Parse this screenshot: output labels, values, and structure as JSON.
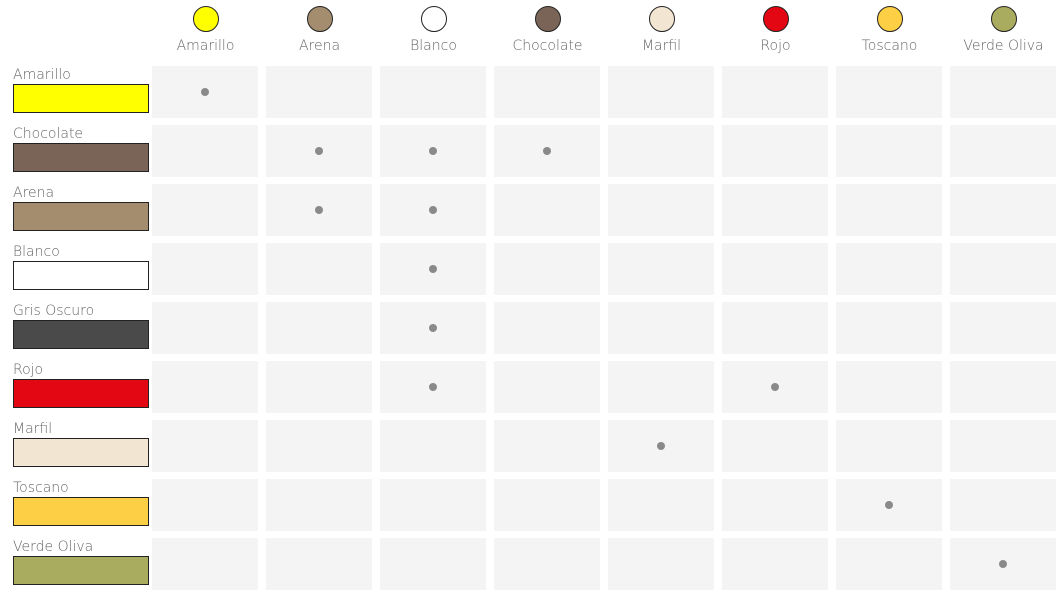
{
  "columns": [
    {
      "label": "Amarillo",
      "color": "#ffff00"
    },
    {
      "label": "Arena",
      "color": "#a38d6e"
    },
    {
      "label": "Blanco",
      "color": "#ffffff"
    },
    {
      "label": "Chocolate",
      "color": "#7a6457"
    },
    {
      "label": "Marfil",
      "color": "#f2e6d3"
    },
    {
      "label": "Rojo",
      "color": "#e30613"
    },
    {
      "label": "Toscano",
      "color": "#fccf44"
    },
    {
      "label": "Verde Oliva",
      "color": "#a9ab5e"
    }
  ],
  "rows": [
    {
      "label": "Amarillo",
      "color": "#ffff00",
      "marks": [
        "Amarillo"
      ]
    },
    {
      "label": "Chocolate",
      "color": "#7a6457",
      "marks": [
        "Arena",
        "Blanco",
        "Chocolate"
      ]
    },
    {
      "label": "Arena",
      "color": "#a38d6e",
      "marks": [
        "Arena",
        "Blanco"
      ]
    },
    {
      "label": "Blanco",
      "color": "#ffffff",
      "marks": [
        "Blanco"
      ]
    },
    {
      "label": "Gris Oscuro",
      "color": "#4a4a4a",
      "marks": [
        "Blanco"
      ]
    },
    {
      "label": "Rojo",
      "color": "#e30613",
      "marks": [
        "Blanco",
        "Rojo"
      ]
    },
    {
      "label": "Marfil",
      "color": "#f2e6d3",
      "marks": [
        "Marfil"
      ]
    },
    {
      "label": "Toscano",
      "color": "#fccf44",
      "marks": [
        "Toscano"
      ]
    },
    {
      "label": "Verde Oliva",
      "color": "#a9ab5e",
      "marks": [
        "Verde Oliva"
      ]
    }
  ],
  "colors": {
    "cell_background": "#f4f4f4",
    "dot": "#8a8a8a"
  }
}
